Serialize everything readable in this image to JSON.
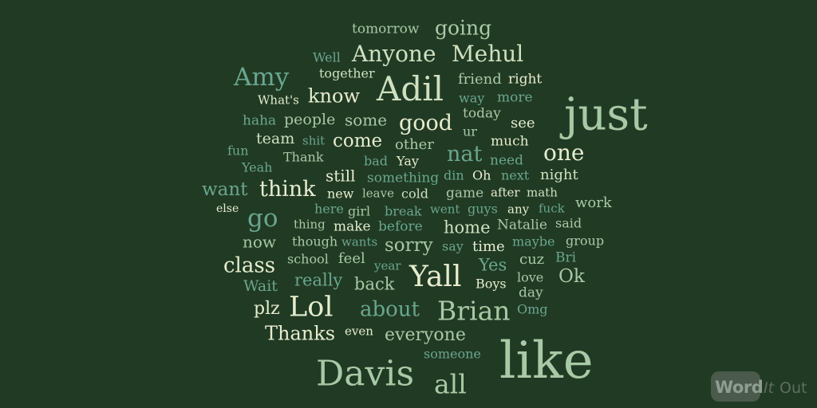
{
  "cloud": {
    "background": "#213a24",
    "palette": [
      "#cfe0c0",
      "#a9c9a6",
      "#6aa68f",
      "#e6edcf"
    ],
    "words": [
      {
        "text": "tomorrow",
        "tone": 2
      },
      {
        "text": "going",
        "tone": 2
      },
      {
        "text": "Well",
        "tone": 3
      },
      {
        "text": "Anyone",
        "tone": 1
      },
      {
        "text": "Mehul",
        "tone": 1
      },
      {
        "text": "Amy",
        "tone": 3
      },
      {
        "text": "together",
        "tone": 1
      },
      {
        "text": "Adil",
        "tone": 1
      },
      {
        "text": "friend",
        "tone": 2
      },
      {
        "text": "right",
        "tone": 4
      },
      {
        "text": "What's",
        "tone": 4
      },
      {
        "text": "know",
        "tone": 4
      },
      {
        "text": "way",
        "tone": 3
      },
      {
        "text": "more",
        "tone": 3
      },
      {
        "text": "just",
        "tone": 2
      },
      {
        "text": "haha",
        "tone": 3
      },
      {
        "text": "people",
        "tone": 2
      },
      {
        "text": "some",
        "tone": 2
      },
      {
        "text": "good",
        "tone": 4
      },
      {
        "text": "today",
        "tone": 2
      },
      {
        "text": "see",
        "tone": 4
      },
      {
        "text": "ur",
        "tone": 2
      },
      {
        "text": "team",
        "tone": 1
      },
      {
        "text": "shit",
        "tone": 3
      },
      {
        "text": "come",
        "tone": 4
      },
      {
        "text": "other",
        "tone": 2
      },
      {
        "text": "much",
        "tone": 4
      },
      {
        "text": "fun",
        "tone": 3
      },
      {
        "text": "Thank",
        "tone": 2
      },
      {
        "text": "nat",
        "tone": 3
      },
      {
        "text": "one",
        "tone": 4
      },
      {
        "text": "bad",
        "tone": 3
      },
      {
        "text": "Yay",
        "tone": 4
      },
      {
        "text": "need",
        "tone": 3
      },
      {
        "text": "Yeah",
        "tone": 3
      },
      {
        "text": "still",
        "tone": 4
      },
      {
        "text": "something",
        "tone": 3
      },
      {
        "text": "din",
        "tone": 3
      },
      {
        "text": "Oh",
        "tone": 4
      },
      {
        "text": "next",
        "tone": 3
      },
      {
        "text": "night",
        "tone": 1
      },
      {
        "text": "want",
        "tone": 3
      },
      {
        "text": "think",
        "tone": 4
      },
      {
        "text": "new",
        "tone": 4
      },
      {
        "text": "leave",
        "tone": 2
      },
      {
        "text": "cold",
        "tone": 1
      },
      {
        "text": "game",
        "tone": 2
      },
      {
        "text": "after",
        "tone": 4
      },
      {
        "text": "math",
        "tone": 1
      },
      {
        "text": "work",
        "tone": 2
      },
      {
        "text": "else",
        "tone": 4
      },
      {
        "text": "go",
        "tone": 3
      },
      {
        "text": "here",
        "tone": 3
      },
      {
        "text": "girl",
        "tone": 2
      },
      {
        "text": "break",
        "tone": 3
      },
      {
        "text": "went",
        "tone": 3
      },
      {
        "text": "guys",
        "tone": 3
      },
      {
        "text": "any",
        "tone": 4
      },
      {
        "text": "fuck",
        "tone": 3
      },
      {
        "text": "thing",
        "tone": 2
      },
      {
        "text": "make",
        "tone": 4
      },
      {
        "text": "before",
        "tone": 3
      },
      {
        "text": "home",
        "tone": 1
      },
      {
        "text": "Natalie",
        "tone": 2
      },
      {
        "text": "said",
        "tone": 2
      },
      {
        "text": "now",
        "tone": 2
      },
      {
        "text": "though",
        "tone": 2
      },
      {
        "text": "wants",
        "tone": 3
      },
      {
        "text": "sorry",
        "tone": 2
      },
      {
        "text": "say",
        "tone": 3
      },
      {
        "text": "time",
        "tone": 4
      },
      {
        "text": "maybe",
        "tone": 3
      },
      {
        "text": "group",
        "tone": 2
      },
      {
        "text": "class",
        "tone": 4
      },
      {
        "text": "school",
        "tone": 2
      },
      {
        "text": "feel",
        "tone": 2
      },
      {
        "text": "year",
        "tone": 3
      },
      {
        "text": "Yes",
        "tone": 3
      },
      {
        "text": "cuz",
        "tone": 2
      },
      {
        "text": "Bri",
        "tone": 3
      },
      {
        "text": "Yall",
        "tone": 4
      },
      {
        "text": "really",
        "tone": 3
      },
      {
        "text": "Ok",
        "tone": 2
      },
      {
        "text": "Wait",
        "tone": 3
      },
      {
        "text": "back",
        "tone": 2
      },
      {
        "text": "Boys",
        "tone": 4
      },
      {
        "text": "love",
        "tone": 2
      },
      {
        "text": "day",
        "tone": 2
      },
      {
        "text": "Lol",
        "tone": 4
      },
      {
        "text": "about",
        "tone": 3
      },
      {
        "text": "Brian",
        "tone": 2
      },
      {
        "text": "plz",
        "tone": 4
      },
      {
        "text": "Omg",
        "tone": 3
      },
      {
        "text": "Thanks",
        "tone": 4
      },
      {
        "text": "even",
        "tone": 4
      },
      {
        "text": "everyone",
        "tone": 2
      },
      {
        "text": "like",
        "tone": 2
      },
      {
        "text": "someone",
        "tone": 3
      },
      {
        "text": "Davis",
        "tone": 2
      },
      {
        "text": "all",
        "tone": 2
      }
    ]
  },
  "logo": {
    "word": "Word",
    "it": "It",
    "out": "Out"
  }
}
